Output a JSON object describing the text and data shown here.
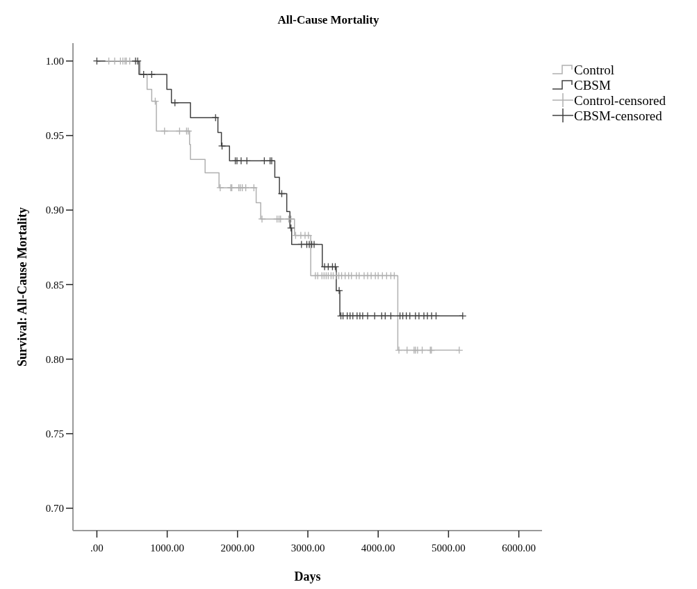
{
  "chart_data": {
    "type": "step",
    "title": "All-Cause Mortality",
    "xlabel": "Days",
    "ylabel": "Survival: All-Cause Mortality",
    "xlim": [
      -340,
      6330
    ],
    "ylim": [
      0.685,
      1.012
    ],
    "xticks": [
      {
        "value": 0,
        "label": ".00"
      },
      {
        "value": 1000,
        "label": "1000.00"
      },
      {
        "value": 2000,
        "label": "2000.00"
      },
      {
        "value": 3000,
        "label": "3000.00"
      },
      {
        "value": 4000,
        "label": "4000.00"
      },
      {
        "value": 5000,
        "label": "5000.00"
      },
      {
        "value": 6000,
        "label": "6000.00"
      }
    ],
    "yticks": [
      {
        "value": 0.7,
        "label": "0.70"
      },
      {
        "value": 0.75,
        "label": "0.75"
      },
      {
        "value": 0.8,
        "label": "0.80"
      },
      {
        "value": 0.85,
        "label": "0.85"
      },
      {
        "value": 0.9,
        "label": "0.90"
      },
      {
        "value": 0.95,
        "label": "0.95"
      },
      {
        "value": 1,
        "label": "1.00"
      }
    ],
    "grid": false,
    "legend": "top right",
    "series": [
      {
        "name": "Control",
        "color": "#b0b0b0",
        "x": [
          0,
          615,
          714,
          780,
          846,
          1318,
          1331,
          1539,
          1737,
          2265,
          2330,
          2810,
          3041,
          4279,
          5153
        ],
        "values": [
          1,
          0.991,
          0.981,
          0.973,
          0.953,
          0.944,
          0.934,
          0.925,
          0.915,
          0.905,
          0.894,
          0.883,
          0.856,
          0.806,
          0.806
        ]
      },
      {
        "name": "CBSM",
        "color": "#404040",
        "x": [
          0,
          599,
          995,
          1060,
          1331,
          1721,
          1771,
          1886,
          2530,
          2596,
          2700,
          2745,
          2770,
          3205,
          3404,
          3455,
          5202
        ],
        "values": [
          1,
          0.991,
          0.981,
          0.972,
          0.962,
          0.952,
          0.943,
          0.933,
          0.922,
          0.911,
          0.899,
          0.888,
          0.877,
          0.862,
          0.846,
          0.829,
          0.829
        ]
      },
      {
        "name": "Control-censored",
        "type": "scatter",
        "marker": "cross",
        "color": "#b0b0b0",
        "x": [
          170,
          253,
          335,
          370,
          400,
          418,
          467,
          830,
          962,
          1176,
          1275,
          1299,
          1754,
          1903,
          1919,
          2018,
          2040,
          2068,
          2117,
          2233,
          2348,
          2562,
          2590,
          2612,
          2728,
          2761,
          2826,
          2900,
          2960,
          3008,
          3107,
          3140,
          3200,
          3230,
          3260,
          3290,
          3330,
          3360,
          3400,
          3440,
          3480,
          3530,
          3580,
          3620,
          3690,
          3730,
          3800,
          3850,
          3900,
          3960,
          4000,
          4060,
          4120,
          4180,
          4229,
          4295,
          4411,
          4510,
          4530,
          4560,
          4626,
          4741,
          4757,
          5153
        ],
        "values": [
          1,
          1,
          1,
          1,
          1,
          1,
          1,
          0.973,
          0.953,
          0.953,
          0.953,
          0.953,
          0.915,
          0.915,
          0.915,
          0.915,
          0.915,
          0.915,
          0.915,
          0.915,
          0.894,
          0.894,
          0.894,
          0.894,
          0.894,
          0.894,
          0.883,
          0.883,
          0.883,
          0.883,
          0.856,
          0.856,
          0.856,
          0.856,
          0.856,
          0.856,
          0.856,
          0.856,
          0.856,
          0.856,
          0.856,
          0.856,
          0.856,
          0.856,
          0.856,
          0.856,
          0.856,
          0.856,
          0.856,
          0.856,
          0.856,
          0.856,
          0.856,
          0.856,
          0.856,
          0.806,
          0.806,
          0.806,
          0.806,
          0.806,
          0.806,
          0.806,
          0.806,
          0.806
        ]
      },
      {
        "name": "CBSM-censored",
        "type": "scatter",
        "marker": "cross",
        "color": "#404040",
        "x": [
          0,
          550,
          580,
          665,
          780,
          1110,
          1688,
          1780,
          1968,
          1992,
          2051,
          2133,
          2381,
          2463,
          2486,
          2629,
          2760,
          2909,
          2985,
          3020,
          3055,
          3089,
          3238,
          3290,
          3350,
          3390,
          3445,
          3470,
          3500,
          3560,
          3600,
          3640,
          3700,
          3740,
          3780,
          3850,
          3950,
          4050,
          4100,
          4180,
          4310,
          4350,
          4400,
          4450,
          4530,
          4580,
          4650,
          4700,
          4760,
          4823,
          5202
        ],
        "values": [
          1,
          1,
          1,
          0.991,
          0.991,
          0.972,
          0.962,
          0.943,
          0.933,
          0.933,
          0.933,
          0.933,
          0.933,
          0.933,
          0.933,
          0.911,
          0.888,
          0.877,
          0.877,
          0.877,
          0.877,
          0.877,
          0.862,
          0.862,
          0.862,
          0.862,
          0.846,
          0.829,
          0.829,
          0.829,
          0.829,
          0.829,
          0.829,
          0.829,
          0.829,
          0.829,
          0.829,
          0.829,
          0.829,
          0.829,
          0.829,
          0.829,
          0.829,
          0.829,
          0.829,
          0.829,
          0.829,
          0.829,
          0.829,
          0.829,
          0.829
        ]
      }
    ]
  }
}
